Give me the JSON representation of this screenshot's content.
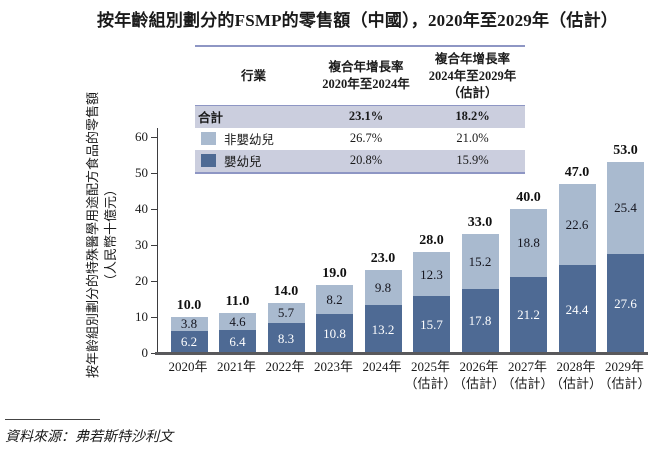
{
  "title": "按年齡組別劃分的FSMP的零售額（中國），2020年至2029年（估計）",
  "footer": {
    "source": "資料來源：弗若斯特沙利文"
  },
  "colors": {
    "light_blue": "#a9bacf",
    "dark_blue": "#4e6a94",
    "row_bg": "#cbcede",
    "table_border": "#8e96c4",
    "axis": "#3d3d3f"
  },
  "table": {
    "headers": {
      "col1": "行業",
      "col2_line1": "複合年增長率",
      "col2_line2": "2020年至2024年",
      "col3_line1": "複合年增長率",
      "col3_line2": "2024年至2029年",
      "col3_line3": "（估計）"
    },
    "rows": [
      {
        "label": "合計",
        "cagr_2020_2024": "23.1%",
        "cagr_2024_2029": "18.2%"
      },
      {
        "label": "非嬰幼兒",
        "cagr_2020_2024": "26.7%",
        "cagr_2024_2029": "21.0%"
      },
      {
        "label": "嬰幼兒",
        "cagr_2020_2024": "20.8%",
        "cagr_2024_2029": "15.9%"
      }
    ]
  },
  "chart_data": {
    "type": "bar",
    "stacked": true,
    "title": "按年齡組別劃分的FSMP的零售額（中國），2020年至2029年（估計）",
    "ylabel": "按年齡組別劃分的特殊醫學用途配方食品的零售額",
    "ylabel_unit": "（人民幣十億元）",
    "ylim": [
      0,
      60
    ],
    "yticks": [
      0,
      10,
      20,
      30,
      40,
      50,
      60
    ],
    "grid": false,
    "legend_position": "table-top",
    "categories": [
      "2020年",
      "2021年",
      "2022年",
      "2023年",
      "2024年",
      "2025年",
      "2026年",
      "2027年",
      "2028年",
      "2029年"
    ],
    "category_suffix": [
      "",
      "",
      "",
      "",
      "",
      "（估計）",
      "（估計）",
      "（估計）",
      "（估計）",
      "（估計）"
    ],
    "series": [
      {
        "name": "嬰幼兒",
        "stack": "bottom",
        "color_key": "dark_blue",
        "values": [
          6.2,
          6.4,
          8.3,
          10.8,
          13.2,
          15.7,
          17.8,
          21.2,
          24.4,
          27.6
        ]
      },
      {
        "name": "非嬰幼兒",
        "stack": "top",
        "color_key": "light_blue",
        "values": [
          3.8,
          4.6,
          5.7,
          8.2,
          9.8,
          12.3,
          15.2,
          18.8,
          22.6,
          25.4
        ]
      }
    ],
    "totals": [
      10.0,
      11.0,
      14.0,
      19.0,
      23.0,
      28.0,
      33.0,
      40.0,
      47.0,
      53.0
    ]
  }
}
